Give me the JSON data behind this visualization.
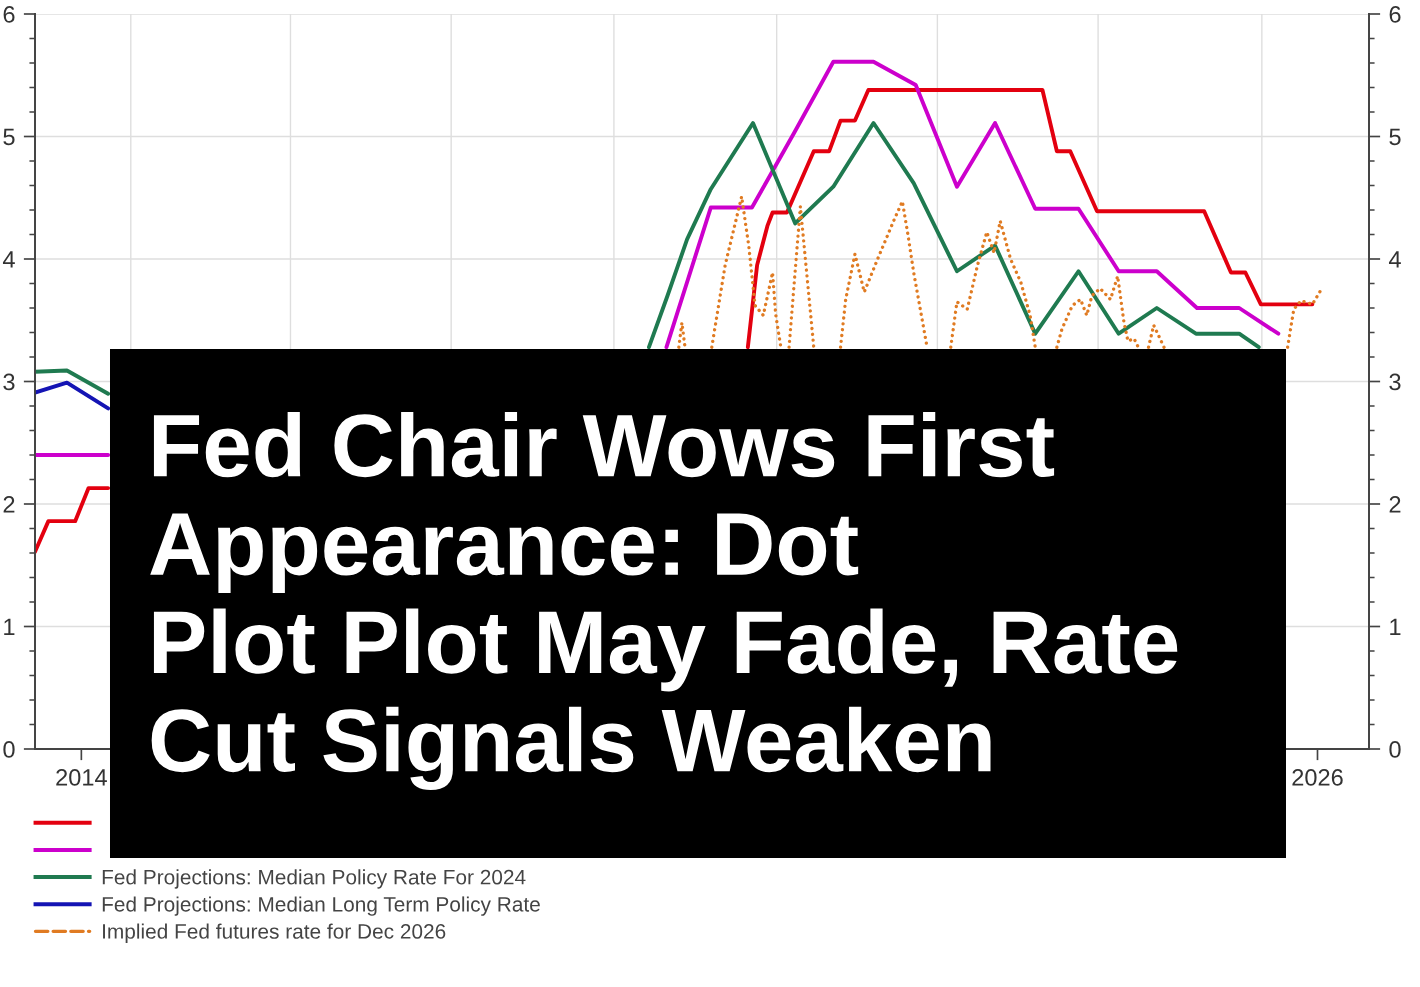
{
  "chart_data": {
    "type": "line",
    "title": "Fed Chair Wows First\nAppearance: Dot\nPlot Plot May Fade, Rate\nCut Signals Weaken",
    "xlim": [
      2013.55,
      2026.5
    ],
    "xticks": [
      {
        "value": 2014,
        "label": "2014"
      },
      {
        "value": 2014.48,
        "label": null
      },
      {
        "value": 2016.03,
        "label": null
      },
      {
        "value": 2017.59,
        "label": null
      },
      {
        "value": 2019.17,
        "label": null
      },
      {
        "value": 2020.75,
        "label": null
      },
      {
        "value": 2022.31,
        "label": null
      },
      {
        "value": 2023.87,
        "label": null
      },
      {
        "value": 2025.46,
        "label": null
      },
      {
        "value": 2026,
        "label": "2026"
      }
    ],
    "ylim": [
      0,
      6
    ],
    "yticks": [
      0,
      {
        "value": 0.2,
        "label": null
      },
      {
        "value": 0.4,
        "label": null
      },
      {
        "value": 0.6,
        "label": null
      },
      {
        "value": 0.8,
        "label": null
      },
      1,
      {
        "value": 1.2,
        "label": null
      },
      {
        "value": 1.4,
        "label": null
      },
      {
        "value": 1.6,
        "label": null
      },
      {
        "value": 1.8,
        "label": null
      },
      2,
      {
        "value": 2.2,
        "label": null
      },
      {
        "value": 2.4,
        "label": null
      },
      {
        "value": 2.6,
        "label": null
      },
      {
        "value": 2.8,
        "label": null
      },
      3,
      {
        "value": 3.2,
        "label": null
      },
      {
        "value": 3.4,
        "label": null
      },
      {
        "value": 3.6,
        "label": null
      },
      {
        "value": 3.8,
        "label": null
      },
      4,
      {
        "value": 4.2,
        "label": null
      },
      {
        "value": 4.4,
        "label": null
      },
      {
        "value": 4.6,
        "label": null
      },
      {
        "value": 4.8,
        "label": null
      },
      5,
      {
        "value": 5.2,
        "label": null
      },
      {
        "value": 5.4,
        "label": null
      },
      {
        "value": 5.6,
        "label": null
      },
      {
        "value": 5.8,
        "label": null
      },
      6
    ],
    "y2lim": [
      0,
      6
    ],
    "y2ticks": [
      0,
      {
        "value": 0.2,
        "label": null
      },
      {
        "value": 0.4,
        "label": null
      },
      {
        "value": 0.6,
        "label": null
      },
      {
        "value": 0.8,
        "label": null
      },
      1,
      {
        "value": 1.2,
        "label": null
      },
      {
        "value": 1.4,
        "label": null
      },
      {
        "value": 1.6,
        "label": null
      },
      {
        "value": 1.8,
        "label": null
      },
      2,
      {
        "value": 2.2,
        "label": null
      },
      {
        "value": 2.4,
        "label": null
      },
      {
        "value": 2.6,
        "label": null
      },
      {
        "value": 2.8,
        "label": null
      },
      3,
      {
        "value": 3.2,
        "label": null
      },
      {
        "value": 3.4,
        "label": null
      },
      {
        "value": 3.6,
        "label": null
      },
      {
        "value": 3.8,
        "label": null
      },
      4,
      {
        "value": 4.2,
        "label": null
      },
      {
        "value": 4.4,
        "label": null
      },
      {
        "value": 4.6,
        "label": null
      },
      {
        "value": 4.8,
        "label": null
      },
      5,
      {
        "value": 5.2,
        "label": null
      },
      {
        "value": 5.4,
        "label": null
      },
      {
        "value": 5.6,
        "label": null
      },
      {
        "value": 5.8,
        "label": null
      },
      6
    ],
    "grid": true,
    "legend": "bottom left",
    "series": [
      {
        "color": "#e3000f",
        "x": [
          2013.55,
          2013.68,
          2013.94,
          2014.07,
          2014.26,
          2017.0,
          2020.47,
          2020.56,
          2020.66,
          2020.71,
          2020.85,
          2021.11,
          2021.26,
          2021.37,
          2021.51,
          2021.64,
          2023.33,
          2023.47,
          2023.6,
          2023.86,
          2024.9,
          2025.16,
          2025.3,
          2025.45,
          2025.95
        ],
        "values": [
          1.61,
          1.86,
          1.86,
          2.13,
          2.13,
          null,
          3.28,
          3.95,
          4.27,
          4.38,
          4.38,
          4.88,
          4.88,
          5.13,
          5.13,
          5.38,
          5.38,
          4.88,
          4.88,
          4.39,
          4.39,
          3.89,
          3.89,
          3.63,
          3.63
        ]
      },
      {
        "color": "#cc00cc",
        "x": [
          2013.55,
          2014.26,
          2017.0,
          2019.68,
          2020.11,
          2020.51,
          2020.92,
          2021.3,
          2021.69,
          2022.1,
          2022.5,
          2022.87,
          2023.26,
          2023.68,
          2024.07,
          2024.44,
          2024.83,
          2025.24,
          2025.62
        ],
        "values": [
          2.4,
          2.4,
          null,
          3.28,
          4.42,
          4.42,
          5.03,
          5.61,
          5.61,
          5.42,
          4.59,
          5.11,
          4.41,
          4.41,
          3.9,
          3.9,
          3.6,
          3.6,
          3.39
        ]
      },
      {
        "name": "Fed Projections: Median Policy Rate For 2024",
        "color": "#1f7a50",
        "x": [
          2013.55,
          2013.86,
          2014.26,
          2017.0,
          2019.51,
          2019.69,
          2019.88,
          2020.11,
          2020.52,
          2020.93,
          2021.3,
          2021.69,
          2022.08,
          2022.5,
          2022.87,
          2023.26,
          2023.68,
          2024.07,
          2024.44,
          2024.82,
          2025.24,
          2025.43
        ],
        "values": [
          3.08,
          3.09,
          2.9,
          null,
          3.28,
          3.7,
          4.16,
          4.57,
          5.11,
          4.29,
          4.59,
          5.11,
          4.62,
          3.9,
          4.11,
          3.39,
          3.9,
          3.39,
          3.6,
          3.39,
          3.39,
          3.28
        ]
      },
      {
        "name": "Fed Projections: Median Long Term Policy Rate",
        "color": "#1414b4",
        "x": [
          2013.55,
          2013.86,
          2014.26
        ],
        "values": [
          2.91,
          2.99,
          2.78
        ]
      },
      {
        "name": "Implied Fed futures rate for Dec 2026",
        "color": "#e07b22",
        "line_style": "dotted",
        "x": [
          2019.8,
          2019.83,
          2019.86,
          2020.0,
          2020.12,
          2020.25,
          2020.41,
          2020.48,
          2020.54,
          2020.62,
          2020.71,
          2020.74,
          2020.79,
          2020.83,
          2020.87,
          2020.98,
          2021.11,
          2021.2,
          2021.37,
          2021.42,
          2021.51,
          2021.6,
          2021.73,
          2021.89,
          2021.97,
          2022.02,
          2022.08,
          2022.21,
          2022.3,
          2022.44,
          2022.5,
          2022.6,
          2022.7,
          2022.79,
          2022.86,
          2022.92,
          2023.02,
          2023.12,
          2023.21,
          2023.26,
          2023.36,
          2023.47,
          2023.52,
          2023.62,
          2023.7,
          2023.76,
          2023.81,
          2023.89,
          2023.99,
          2024.06,
          2024.12,
          2024.16,
          2024.22,
          2024.26,
          2024.31,
          2024.36,
          2024.41,
          2024.51,
          2025.0,
          2025.71,
          2025.77,
          2025.84,
          2025.95,
          2026.05
        ],
        "values": [
          3.28,
          3.48,
          3.28,
          null,
          3.28,
          3.95,
          4.51,
          4.1,
          3.62,
          3.54,
          3.89,
          3.55,
          3.28,
          null,
          3.28,
          4.43,
          3.28,
          null,
          3.28,
          3.67,
          4.04,
          3.73,
          4.0,
          4.32,
          4.47,
          4.22,
          3.89,
          3.28,
          null,
          3.28,
          3.65,
          3.59,
          3.95,
          4.22,
          4.05,
          4.31,
          4.0,
          3.81,
          3.54,
          3.28,
          null,
          3.28,
          3.43,
          3.62,
          3.67,
          3.54,
          3.7,
          3.76,
          3.67,
          3.86,
          3.49,
          3.33,
          3.35,
          3.28,
          null,
          3.28,
          3.46,
          3.28,
          null,
          3.28,
          3.59,
          3.66,
          3.63,
          3.77
        ]
      }
    ]
  }
}
